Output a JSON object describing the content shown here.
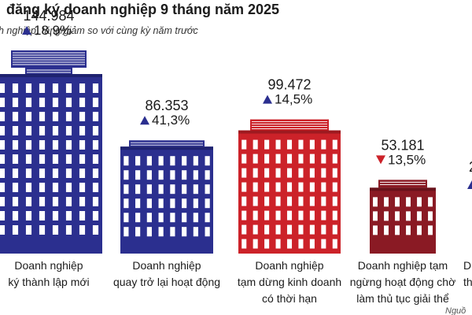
{
  "title": "đăng ký doanh nghiệp 9 tháng năm 2025",
  "subtitle": "h nghiệp, tăng/giảm so với cùng kỳ năm trước",
  "source_fragment": "Nguồ",
  "colors": {
    "blue": "#2b2f8f",
    "blue_dark": "#1f2370",
    "red": "#cc2229",
    "red_dark": "#9e1a20",
    "maroon": "#8a1a24",
    "maroon_dark": "#68121b",
    "window": "#ffffff",
    "up_arrow": "#2b2f8f",
    "down_arrow": "#cc2229"
  },
  "chart_data": {
    "type": "bar",
    "title": "đăng ký doanh nghiệp 9 tháng năm 2025",
    "subtitle": "h nghiệp, tăng/giảm so với cùng kỳ năm trước",
    "categories": [
      [
        "Doanh nghiệp",
        "ký thành lập mới"
      ],
      [
        "Doanh nghiệp",
        "quay trở lại hoạt động"
      ],
      [
        "Doanh nghiệp",
        "tạm dừng kinh doanh",
        "có thời hạn"
      ],
      [
        "Doanh nghiệp tạm",
        "ngừng hoạt động chờ",
        "làm thủ tục giải thể"
      ],
      [
        "D",
        "th"
      ]
    ],
    "values": [
      144984,
      86353,
      99472,
      53181,
      null
    ],
    "value_labels": [
      "144.984",
      "86.353",
      "99.472",
      "53.181",
      "2"
    ],
    "change_labels": [
      "18,9%",
      "41,3%",
      "14,5%",
      "13,5%",
      ""
    ],
    "change_direction": [
      "up",
      "up",
      "up",
      "down",
      "up"
    ],
    "bar_colors": [
      "blue",
      "blue",
      "red",
      "maroon",
      "blue"
    ]
  }
}
